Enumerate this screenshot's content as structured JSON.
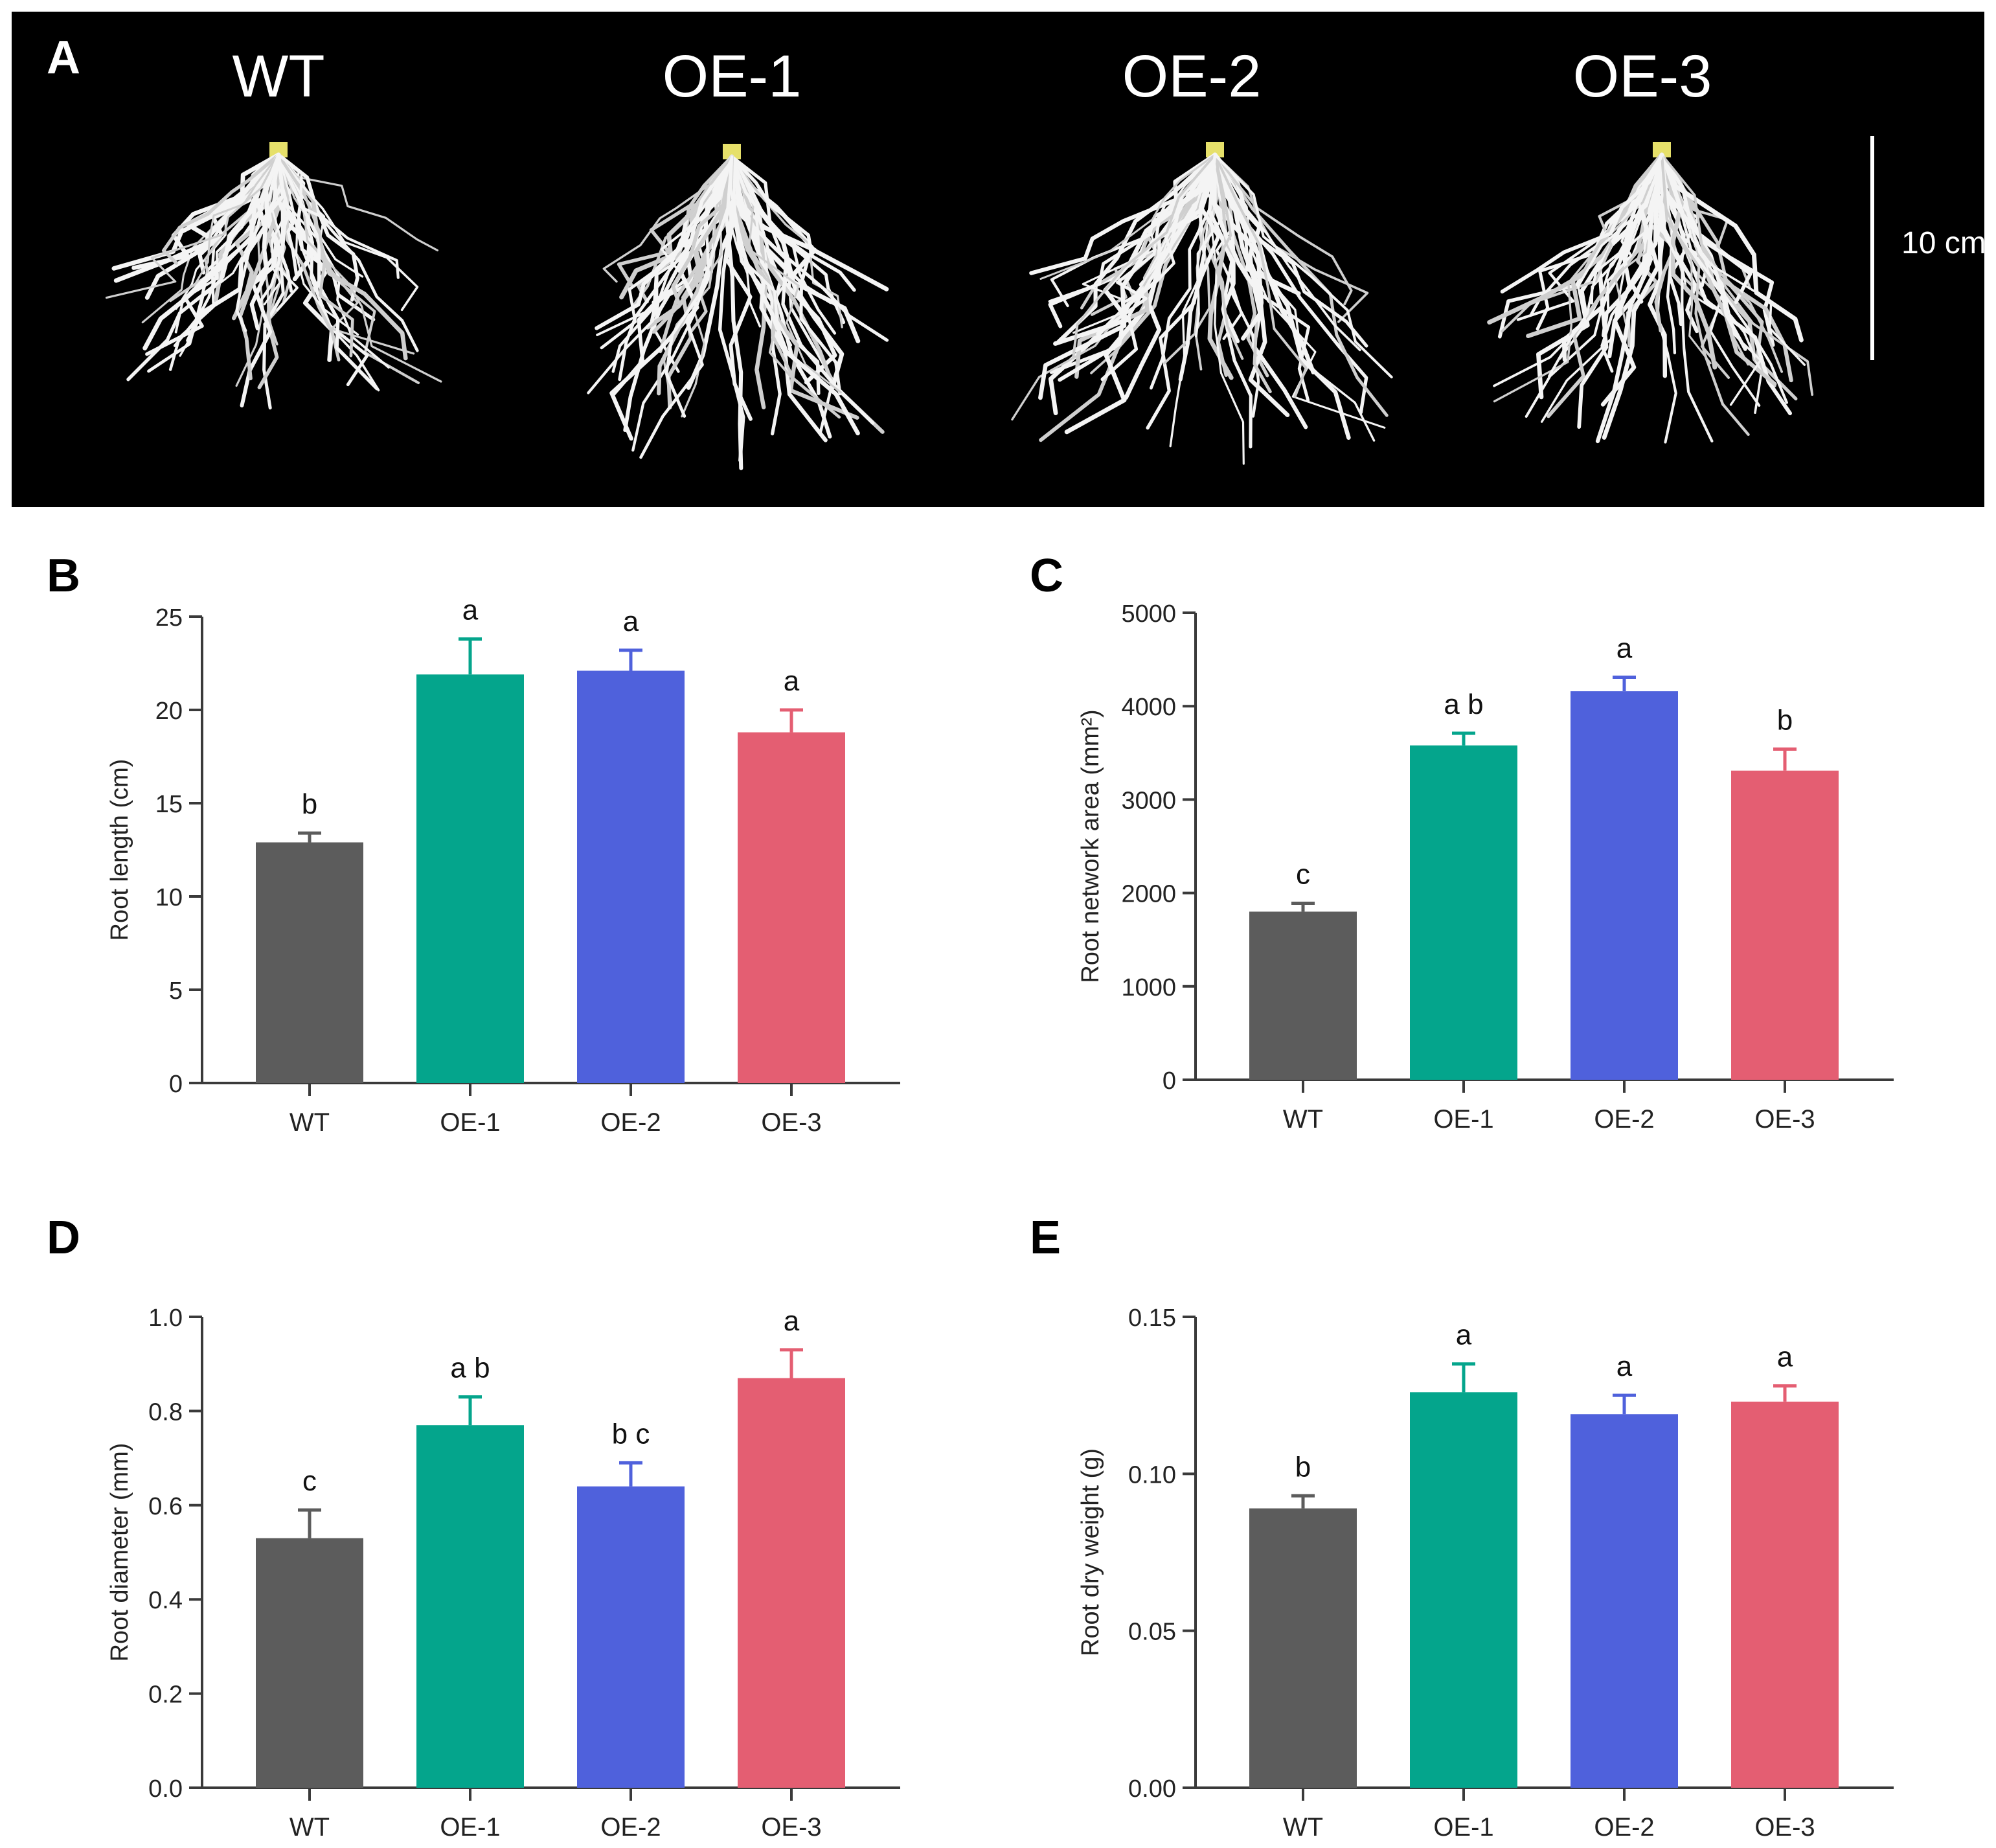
{
  "panels": {
    "a": {
      "letter": "A"
    },
    "b": {
      "letter": "B"
    },
    "c": {
      "letter": "C"
    },
    "d": {
      "letter": "D"
    },
    "e": {
      "letter": "E"
    }
  },
  "photo": {
    "labels": [
      "WT",
      "OE-1",
      "OE-2",
      "OE-3"
    ],
    "scale_bar_label": "10 cm"
  },
  "colors": {
    "WT": "#5c5c5c",
    "OE-1": "#04a58c",
    "OE-2": "#4f61dc",
    "OE-3": "#e45e72"
  },
  "chart_data": [
    {
      "id": "B",
      "type": "bar",
      "categories": [
        "WT",
        "OE-1",
        "OE-2",
        "OE-3"
      ],
      "values": [
        12.9,
        21.9,
        22.1,
        18.8
      ],
      "errors": [
        0.5,
        1.9,
        1.1,
        1.2
      ],
      "letters": [
        "b",
        "a",
        "a",
        "a"
      ],
      "ylabel": "Root length (cm)",
      "ylim": [
        0,
        25
      ],
      "yticks": [
        "0",
        "5",
        "10",
        "15",
        "20",
        "25"
      ]
    },
    {
      "id": "C",
      "type": "bar",
      "categories": [
        "WT",
        "OE-1",
        "OE-2",
        "OE-3"
      ],
      "values": [
        1800,
        3580,
        4160,
        3310
      ],
      "errors": [
        90,
        130,
        150,
        230
      ],
      "letters": [
        "c",
        "a b",
        "a",
        "b"
      ],
      "ylabel": "Root network area (mm²)",
      "ylim": [
        0,
        5000
      ],
      "yticks": [
        "0",
        "1000",
        "2000",
        "3000",
        "4000",
        "5000"
      ]
    },
    {
      "id": "D",
      "type": "bar",
      "categories": [
        "WT",
        "OE-1",
        "OE-2",
        "OE-3"
      ],
      "values": [
        0.53,
        0.77,
        0.64,
        0.87
      ],
      "errors": [
        0.06,
        0.06,
        0.05,
        0.06
      ],
      "letters": [
        "c",
        "a b",
        "b c",
        "a"
      ],
      "ylabel": "Root diameter (mm)",
      "ylim": [
        0,
        1.0
      ],
      "yticks": [
        "0.0",
        "0.2",
        "0.4",
        "0.6",
        "0.8",
        "1.0"
      ]
    },
    {
      "id": "E",
      "type": "bar",
      "categories": [
        "WT",
        "OE-1",
        "OE-2",
        "OE-3"
      ],
      "values": [
        0.089,
        0.126,
        0.119,
        0.123
      ],
      "errors": [
        0.004,
        0.009,
        0.006,
        0.005
      ],
      "letters": [
        "b",
        "a",
        "a",
        "a"
      ],
      "ylabel": "Root dry weight (g)",
      "ylim": [
        0,
        0.15
      ],
      "yticks": [
        "0.00",
        "0.05",
        "0.10",
        "0.15"
      ]
    }
  ]
}
